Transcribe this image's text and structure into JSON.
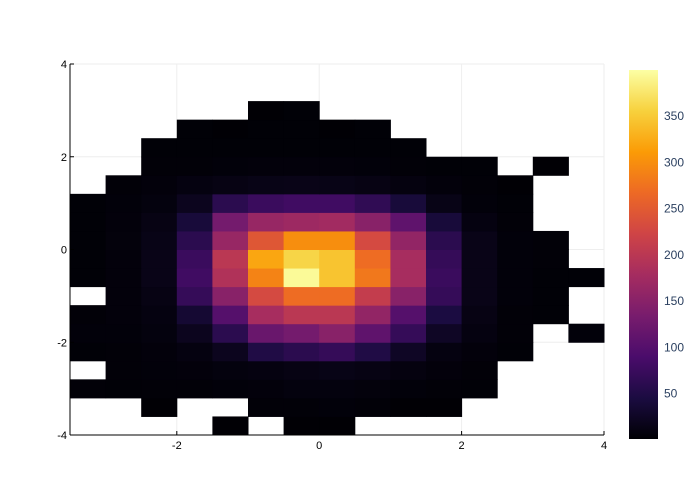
{
  "chart_data": {
    "type": "heatmap",
    "title": "",
    "xlabel": "",
    "ylabel": "",
    "xlim": [
      -3.5,
      4
    ],
    "ylim": [
      -4,
      4
    ],
    "bin_width_x": 0.5,
    "bin_width_y": 0.4,
    "x_bin_starts": [
      -3.5,
      -3,
      -2.5,
      -2,
      -1.5,
      -1,
      -0.5,
      0,
      0.5,
      1,
      1.5,
      2,
      2.5,
      3,
      3.5
    ],
    "y_bin_starts": [
      -4,
      -3.6,
      -3.2,
      -2.8,
      -2.4,
      -2,
      -1.6,
      -1.2,
      -0.8,
      -0.4,
      0,
      0.4,
      0.8,
      1.2,
      1.6,
      2,
      2.4,
      2.8,
      3.2,
      3.6
    ],
    "xticks": [
      -2,
      0,
      2,
      4
    ],
    "yticks": [
      -4,
      -2,
      0,
      2,
      4
    ],
    "x_tick_labels": [
      "-2",
      "0",
      "2",
      "4"
    ],
    "y_tick_labels": [
      "-4",
      "-2",
      "0",
      "2",
      "4"
    ],
    "grid": true,
    "colorscale": "inferno",
    "colorbar_range": [
      1,
      400
    ],
    "colorbar_ticks": [
      50,
      100,
      150,
      200,
      250,
      300,
      350
    ],
    "colorbar_tick_labels": [
      "50",
      "100",
      "150",
      "200",
      "250",
      "300",
      "350"
    ],
    "values": [
      [
        null,
        null,
        null,
        null,
        2,
        null,
        2,
        2,
        null,
        null,
        null,
        null,
        null,
        null,
        null
      ],
      [
        null,
        null,
        2,
        null,
        null,
        4,
        4,
        5,
        4,
        2,
        2,
        null,
        null,
        null,
        null
      ],
      [
        4,
        3,
        4,
        4,
        5,
        6,
        8,
        8,
        7,
        5,
        4,
        3,
        null,
        null,
        null
      ],
      [
        null,
        4,
        5,
        6,
        8,
        10,
        12,
        14,
        12,
        9,
        6,
        4,
        null,
        null,
        null
      ],
      [
        3,
        4,
        6,
        10,
        20,
        50,
        60,
        70,
        50,
        25,
        10,
        6,
        3,
        null,
        null
      ],
      [
        5,
        5,
        8,
        20,
        60,
        120,
        130,
        150,
        110,
        70,
        25,
        10,
        4,
        null,
        5
      ],
      [
        4,
        6,
        10,
        35,
        100,
        180,
        200,
        200,
        160,
        100,
        45,
        12,
        4,
        3,
        null
      ],
      [
        null,
        6,
        12,
        70,
        150,
        230,
        270,
        270,
        210,
        150,
        70,
        15,
        5,
        3,
        null
      ],
      [
        3,
        6,
        15,
        80,
        190,
        290,
        395,
        345,
        280,
        180,
        75,
        15,
        5,
        3,
        3
      ],
      [
        3,
        6,
        15,
        75,
        200,
        320,
        360,
        345,
        270,
        180,
        70,
        15,
        5,
        4,
        null
      ],
      [
        3,
        7,
        14,
        60,
        165,
        245,
        300,
        300,
        230,
        160,
        60,
        15,
        5,
        4,
        null
      ],
      [
        3,
        6,
        12,
        40,
        130,
        165,
        170,
        175,
        150,
        110,
        40,
        10,
        4,
        null,
        null
      ],
      [
        3,
        5,
        8,
        20,
        60,
        75,
        80,
        80,
        65,
        40,
        14,
        5,
        3,
        null,
        null
      ],
      [
        null,
        4,
        6,
        10,
        12,
        14,
        15,
        14,
        12,
        9,
        6,
        4,
        2,
        null,
        null
      ],
      [
        null,
        null,
        4,
        4,
        5,
        6,
        6,
        6,
        5,
        4,
        3,
        3,
        null,
        2,
        null
      ],
      [
        null,
        null,
        3,
        3,
        3,
        3,
        3,
        3,
        3,
        3,
        null,
        null,
        null,
        null,
        null
      ],
      [
        null,
        null,
        null,
        3,
        2,
        3,
        3,
        2,
        3,
        null,
        null,
        null,
        null,
        null,
        null
      ],
      [
        null,
        null,
        null,
        null,
        null,
        2,
        3,
        null,
        null,
        null,
        null,
        null,
        null,
        null,
        null
      ],
      [
        null,
        null,
        null,
        null,
        null,
        null,
        null,
        null,
        null,
        null,
        null,
        null,
        null,
        null,
        null
      ],
      [
        null,
        null,
        null,
        null,
        null,
        null,
        null,
        null,
        null,
        null,
        null,
        null,
        null,
        null,
        null
      ]
    ]
  }
}
